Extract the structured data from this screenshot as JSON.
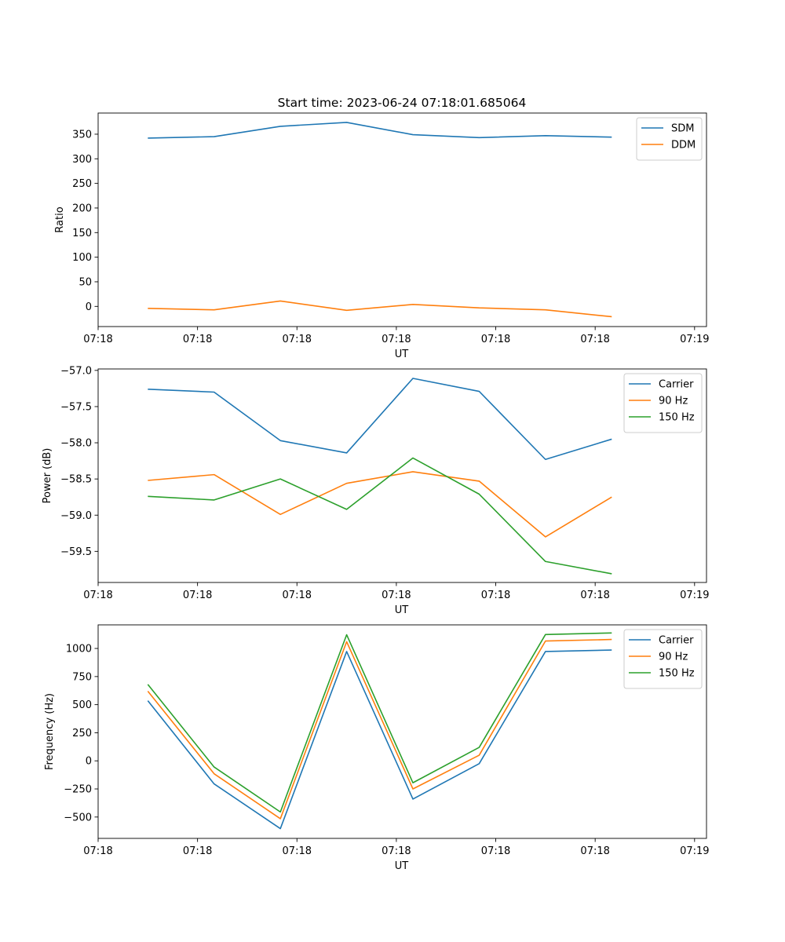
{
  "figure_title": "Start time: 2023-06-24 07:18:01.685064",
  "x_tick_labels": [
    "07:18",
    "07:18",
    "07:18",
    "07:18",
    "07:18",
    "07:18",
    "07:19"
  ],
  "chart_data": [
    {
      "type": "line",
      "title": "Start time: 2023-06-24 07:18:01.685064",
      "xlabel": "UT",
      "ylabel": "Ratio",
      "xlim": [
        0,
        9.18
      ],
      "ylim": [
        -41,
        393
      ],
      "yticks": [
        0,
        50,
        100,
        150,
        200,
        250,
        300,
        350
      ],
      "ytick_labels": [
        "0",
        "50",
        "100",
        "150",
        "200",
        "250",
        "300",
        "350"
      ],
      "x": [
        0.75,
        1.75,
        2.75,
        3.75,
        4.75,
        5.75,
        6.75,
        7.75
      ],
      "legend": "top-right",
      "series": [
        {
          "name": "SDM",
          "color": "#1f77b4",
          "values": [
            342,
            345,
            366,
            374,
            349,
            343,
            347,
            344
          ]
        },
        {
          "name": "DDM",
          "color": "#ff7f0e",
          "values": [
            -4,
            -7,
            11,
            -8,
            4,
            -3,
            -7,
            -21
          ]
        }
      ]
    },
    {
      "type": "line",
      "xlabel": "UT",
      "ylabel": "Power (dB)",
      "xlim": [
        0,
        9.18
      ],
      "ylim": [
        -59.93,
        -56.98
      ],
      "yticks": [
        -59.5,
        -59.0,
        -58.5,
        -58.0,
        -57.5,
        -57.0
      ],
      "ytick_labels": [
        "−59.5",
        "−59.0",
        "−58.5",
        "−58.0",
        "−57.5",
        "−57.0"
      ],
      "x": [
        0.75,
        1.75,
        2.75,
        3.75,
        4.75,
        5.75,
        6.75,
        7.75
      ],
      "legend": "top-right",
      "series": [
        {
          "name": "Carrier",
          "color": "#1f77b4",
          "values": [
            -57.26,
            -57.3,
            -57.97,
            -58.14,
            -57.11,
            -57.29,
            -58.23,
            -57.95
          ]
        },
        {
          "name": "90 Hz",
          "color": "#ff7f0e",
          "values": [
            -58.52,
            -58.44,
            -58.99,
            -58.56,
            -58.4,
            -58.53,
            -59.3,
            -58.75
          ]
        },
        {
          "name": "150 Hz",
          "color": "#2ca02c",
          "values": [
            -58.74,
            -58.79,
            -58.5,
            -58.92,
            -58.21,
            -58.71,
            -59.64,
            -59.81
          ]
        }
      ]
    },
    {
      "type": "line",
      "xlabel": "UT",
      "ylabel": "Frequency (Hz)",
      "xlim": [
        0,
        9.18
      ],
      "ylim": [
        -690,
        1210
      ],
      "yticks": [
        -500,
        -250,
        0,
        250,
        500,
        750,
        1000
      ],
      "ytick_labels": [
        "−500",
        "−250",
        "0",
        "250",
        "500",
        "750",
        "1000"
      ],
      "x": [
        0.75,
        1.75,
        2.75,
        3.75,
        4.75,
        5.75,
        6.75,
        7.75
      ],
      "legend": "top-right",
      "series": [
        {
          "name": "Carrier",
          "color": "#1f77b4",
          "values": [
            535,
            -205,
            -603,
            973,
            -340,
            -25,
            973,
            986
          ]
        },
        {
          "name": "90 Hz",
          "color": "#ff7f0e",
          "values": [
            620,
            -115,
            -515,
            1060,
            -250,
            50,
            1066,
            1080
          ]
        },
        {
          "name": "150 Hz",
          "color": "#2ca02c",
          "values": [
            680,
            -55,
            -455,
            1122,
            -195,
            120,
            1124,
            1138
          ]
        }
      ]
    }
  ]
}
